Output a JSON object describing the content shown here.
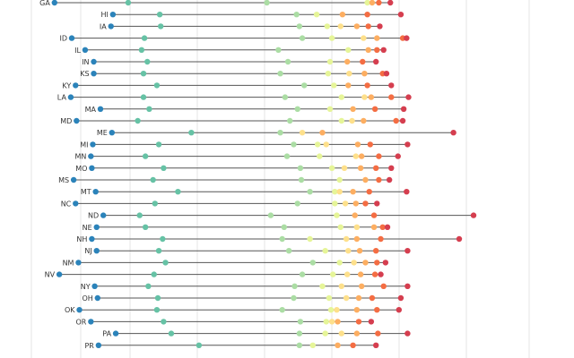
{
  "chart_data": {
    "type": "scatter",
    "title": "",
    "xlabel": "",
    "ylabel": "",
    "xlim": [
      0,
      600
    ],
    "grid": "vertical",
    "legend": "none",
    "color_scale": [
      "#2b83ba",
      "#66c2a5",
      "#abdda4",
      "#e6f598",
      "#fee08b",
      "#fdae61",
      "#f46d43",
      "#d53e4f"
    ],
    "states": [
      {
        "name": "GA",
        "values": [
          57,
          134,
          279,
          384,
          389,
          396,
          408
        ]
      },
      {
        "name": "HI",
        "values": [
          118,
          167,
          310,
          331,
          358,
          384,
          419
        ]
      },
      {
        "name": "IA",
        "values": [
          116,
          168,
          313,
          342,
          356,
          373,
          385,
          397
        ]
      },
      {
        "name": "ID",
        "values": [
          75,
          151,
          316,
          347,
          380,
          394,
          421,
          425
        ]
      },
      {
        "name": "IL",
        "values": [
          89,
          148,
          291,
          364,
          385,
          394,
          401
        ]
      },
      {
        "name": "IN",
        "values": [
          98,
          154,
          301,
          345,
          363,
          379,
          393
        ]
      },
      {
        "name": "KS",
        "values": [
          98,
          150,
          293,
          343,
          365,
          381,
          400,
          404
        ]
      },
      {
        "name": "KY",
        "values": [
          79,
          164,
          318,
          349,
          364,
          384,
          409
        ]
      },
      {
        "name": "LA",
        "values": [
          74,
          150,
          298,
          357,
          381,
          388,
          409,
          427
        ]
      },
      {
        "name": "MA",
        "values": [
          105,
          156,
          311,
          345,
          369,
          392,
          422
        ]
      },
      {
        "name": "MD",
        "values": [
          80,
          144,
          303,
          357,
          368,
          380,
          414,
          421
        ]
      },
      {
        "name": "ME",
        "values": [
          117,
          200,
          293,
          316,
          337,
          474
        ]
      },
      {
        "name": "MI",
        "values": [
          97,
          166,
          307,
          332,
          341,
          374,
          387,
          426
        ]
      },
      {
        "name": "MN",
        "values": [
          95,
          152,
          300,
          334,
          372,
          378,
          396,
          416
        ]
      },
      {
        "name": "MO",
        "values": [
          96,
          171,
          314,
          347,
          360,
          377,
          393,
          409
        ]
      },
      {
        "name": "MS",
        "values": [
          77,
          160,
          315,
          355,
          382,
          396,
          407
        ]
      },
      {
        "name": "MT",
        "values": [
          100,
          186,
          324,
          350,
          355,
          369,
          386,
          425
        ]
      },
      {
        "name": "NC",
        "values": [
          79,
          162,
          311,
          350,
          361,
          372,
          382,
          394
        ]
      },
      {
        "name": "ND",
        "values": [
          108,
          146,
          283,
          352,
          371,
          391,
          495
        ]
      },
      {
        "name": "NE",
        "values": [
          101,
          152,
          297,
          356,
          373,
          391,
          400,
          405
        ]
      },
      {
        "name": "NH",
        "values": [
          96,
          170,
          295,
          324,
          362,
          373,
          398,
          480
        ]
      },
      {
        "name": "NJ",
        "values": [
          101,
          166,
          302,
          340,
          364,
          376,
          393,
          426
        ]
      },
      {
        "name": "NM",
        "values": [
          82,
          173,
          327,
          355,
          370,
          382,
          394,
          403
        ]
      },
      {
        "name": "NV",
        "values": [
          62,
          161,
          316,
          348,
          363,
          377,
          392,
          398
        ]
      },
      {
        "name": "NY",
        "values": [
          99,
          155,
          308,
          337,
          357,
          378,
          401,
          426
        ]
      },
      {
        "name": "OH",
        "values": [
          102,
          165,
          307,
          344,
          362,
          375,
          389,
          419
        ]
      },
      {
        "name": "OK",
        "values": [
          83,
          164,
          295,
          346,
          352,
          373,
          394,
          417
        ]
      },
      {
        "name": "OR",
        "values": [
          95,
          171,
          314,
          341,
          347,
          353,
          375,
          388
        ]
      },
      {
        "name": "PA",
        "values": [
          121,
          179,
          313,
          340,
          357,
          373,
          395,
          426
        ]
      },
      {
        "name": "PR",
        "values": [
          103,
          208,
          313,
          327,
          353,
          369,
          393
        ]
      }
    ]
  }
}
